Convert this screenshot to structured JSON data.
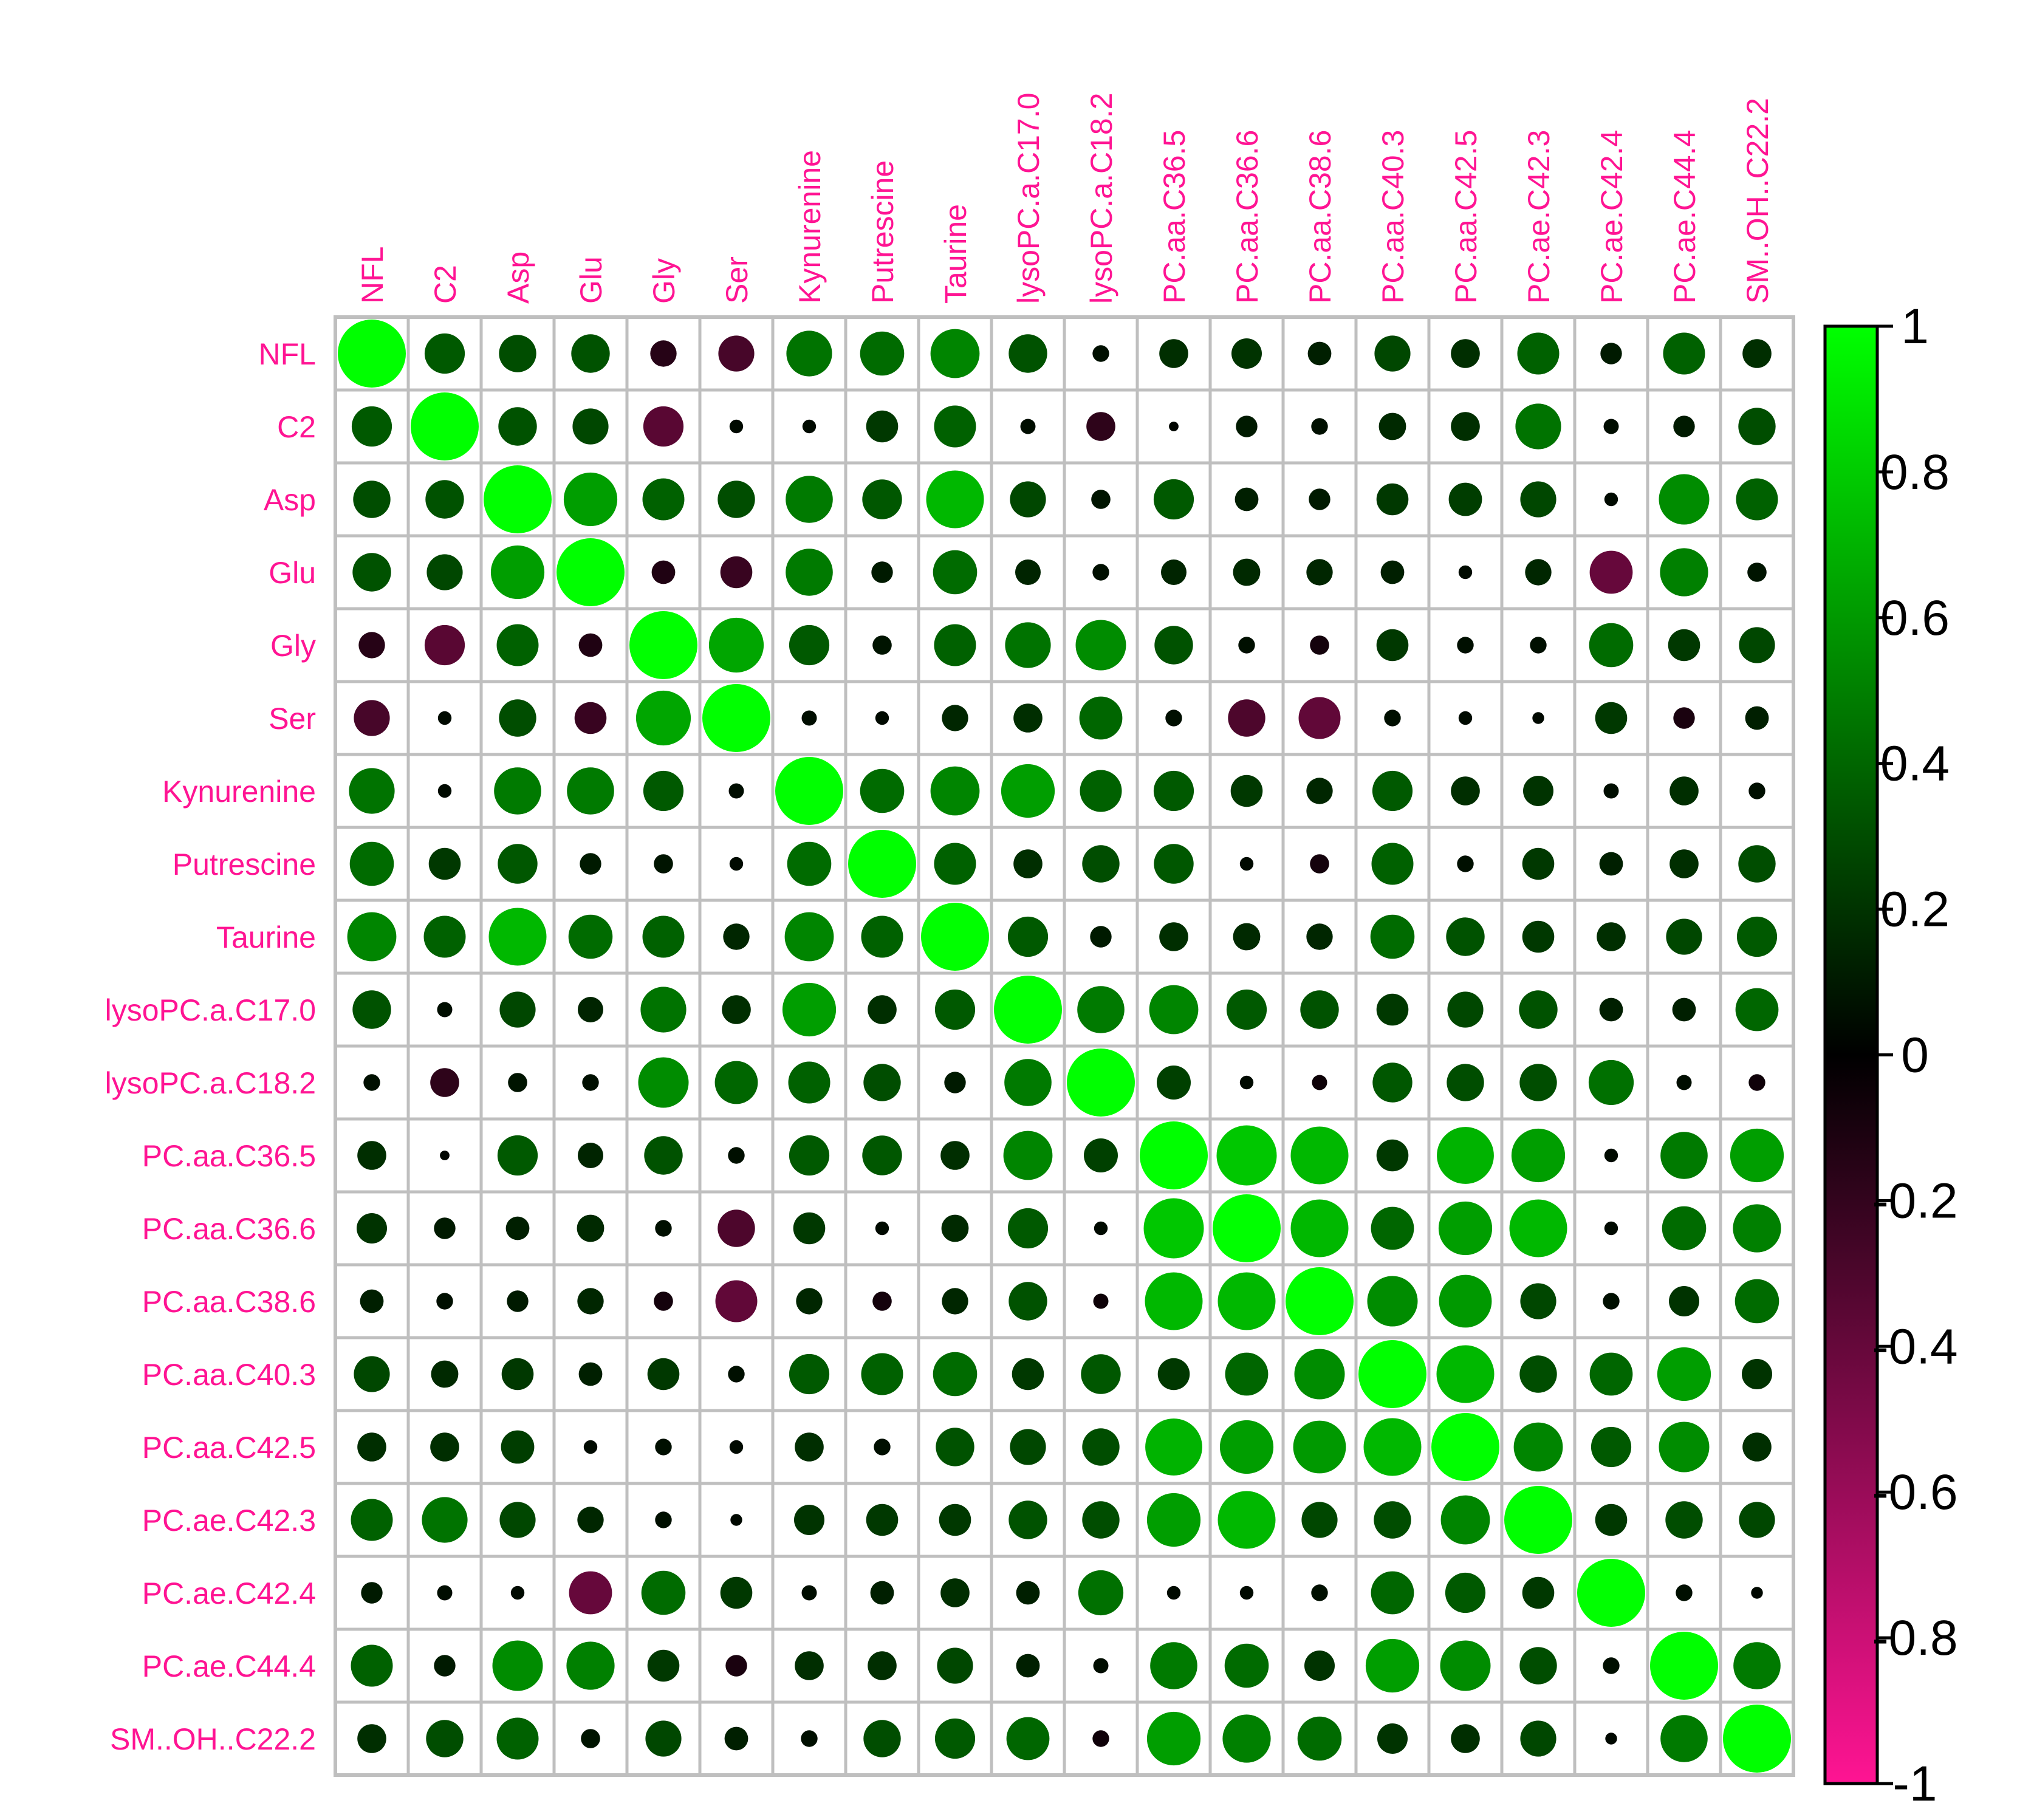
{
  "chart_data": {
    "type": "heatmap",
    "variables": [
      "NFL",
      "C2",
      "Asp",
      "Glu",
      "Gly",
      "Ser",
      "Kynurenine",
      "Putrescine",
      "Taurine",
      "lysoPC.a.C17.0",
      "lysoPC.a.C18.2",
      "PC.aa.C36.5",
      "PC.aa.C36.6",
      "PC.aa.C38.6",
      "PC.aa.C40.3",
      "PC.aa.C42.5",
      "PC.ae.C42.3",
      "PC.ae.C42.4",
      "PC.ae.C44.4",
      "SM..OH..C22.2"
    ],
    "matrix": [
      [
        1.0,
        0.35,
        0.3,
        0.32,
        -0.15,
        -0.28,
        0.45,
        0.42,
        0.52,
        0.32,
        0.06,
        0.18,
        0.2,
        0.12,
        0.28,
        0.18,
        0.38,
        0.1,
        0.38,
        0.18
      ],
      [
        0.35,
        1.0,
        0.32,
        0.28,
        -0.35,
        0.04,
        0.04,
        0.22,
        0.38,
        0.05,
        -0.18,
        0.02,
        0.1,
        0.06,
        0.16,
        0.18,
        0.45,
        0.05,
        0.1,
        0.3
      ],
      [
        0.3,
        0.32,
        1.0,
        0.62,
        0.38,
        0.3,
        0.48,
        0.34,
        0.72,
        0.28,
        0.08,
        0.35,
        0.12,
        0.1,
        0.22,
        0.24,
        0.28,
        0.04,
        0.55,
        0.38
      ],
      [
        0.32,
        0.28,
        0.62,
        1.0,
        -0.12,
        -0.22,
        0.48,
        0.1,
        0.42,
        0.14,
        0.06,
        0.14,
        0.16,
        0.15,
        0.12,
        0.04,
        0.15,
        -0.4,
        0.5,
        0.08
      ],
      [
        -0.15,
        -0.35,
        0.38,
        -0.12,
        1.0,
        0.65,
        0.35,
        0.08,
        0.38,
        0.45,
        0.55,
        0.32,
        0.06,
        -0.08,
        0.22,
        0.06,
        0.06,
        0.42,
        0.22,
        0.28
      ],
      [
        -0.28,
        0.04,
        0.3,
        -0.22,
        0.65,
        1.0,
        0.05,
        0.04,
        0.15,
        0.18,
        0.4,
        0.06,
        -0.3,
        -0.38,
        0.06,
        0.04,
        0.03,
        0.22,
        -0.1,
        0.12
      ],
      [
        0.45,
        0.04,
        0.48,
        0.48,
        0.35,
        0.05,
        1.0,
        0.42,
        0.52,
        0.62,
        0.38,
        0.35,
        0.22,
        0.15,
        0.35,
        0.18,
        0.2,
        0.05,
        0.18,
        0.06
      ],
      [
        0.42,
        0.22,
        0.34,
        0.1,
        0.08,
        0.04,
        0.42,
        1.0,
        0.38,
        0.18,
        0.3,
        0.34,
        0.04,
        -0.08,
        0.38,
        0.06,
        0.22,
        0.12,
        0.18,
        0.3
      ],
      [
        0.52,
        0.38,
        0.72,
        0.42,
        0.38,
        0.15,
        0.52,
        0.38,
        1.0,
        0.35,
        0.1,
        0.18,
        0.16,
        0.15,
        0.42,
        0.32,
        0.22,
        0.18,
        0.28,
        0.35
      ],
      [
        0.32,
        0.05,
        0.28,
        0.14,
        0.45,
        0.18,
        0.62,
        0.18,
        0.35,
        1.0,
        0.48,
        0.52,
        0.35,
        0.32,
        0.22,
        0.28,
        0.32,
        0.12,
        0.12,
        0.4
      ],
      [
        0.06,
        -0.18,
        0.08,
        0.06,
        0.55,
        0.4,
        0.38,
        0.3,
        0.1,
        0.48,
        1.0,
        0.25,
        0.04,
        -0.05,
        0.34,
        0.3,
        0.3,
        0.44,
        0.05,
        -0.06
      ],
      [
        0.18,
        0.02,
        0.35,
        0.14,
        0.32,
        0.06,
        0.35,
        0.34,
        0.18,
        0.52,
        0.25,
        1.0,
        0.78,
        0.72,
        0.22,
        0.7,
        0.62,
        0.04,
        0.48,
        0.62
      ],
      [
        0.2,
        0.1,
        0.12,
        0.16,
        0.06,
        -0.3,
        0.22,
        0.04,
        0.16,
        0.35,
        0.04,
        0.78,
        1.0,
        0.72,
        0.4,
        0.62,
        0.72,
        0.04,
        0.42,
        0.5
      ],
      [
        0.12,
        0.06,
        0.1,
        0.15,
        -0.08,
        -0.38,
        0.15,
        -0.08,
        0.15,
        0.32,
        -0.05,
        0.72,
        0.72,
        1.0,
        0.55,
        0.6,
        0.28,
        0.06,
        0.2,
        0.42
      ],
      [
        0.28,
        0.16,
        0.22,
        0.12,
        0.22,
        0.06,
        0.35,
        0.38,
        0.42,
        0.22,
        0.34,
        0.22,
        0.4,
        0.55,
        1.0,
        0.72,
        0.3,
        0.4,
        0.62,
        0.2
      ],
      [
        0.18,
        0.18,
        0.24,
        0.04,
        0.06,
        0.04,
        0.18,
        0.06,
        0.32,
        0.28,
        0.3,
        0.7,
        0.62,
        0.6,
        0.72,
        1.0,
        0.52,
        0.35,
        0.55,
        0.18
      ],
      [
        0.38,
        0.45,
        0.28,
        0.15,
        0.06,
        0.03,
        0.2,
        0.22,
        0.22,
        0.32,
        0.3,
        0.62,
        0.72,
        0.28,
        0.3,
        0.52,
        1.0,
        0.22,
        0.3,
        0.28
      ],
      [
        0.1,
        0.05,
        0.04,
        -0.4,
        0.42,
        0.22,
        0.05,
        0.12,
        0.18,
        0.12,
        0.44,
        0.04,
        0.04,
        0.06,
        0.4,
        0.35,
        0.22,
        1.0,
        0.06,
        0.03
      ],
      [
        0.38,
        0.1,
        0.55,
        0.5,
        0.22,
        -0.1,
        0.18,
        0.18,
        0.28,
        0.12,
        0.05,
        0.48,
        0.42,
        0.2,
        0.62,
        0.55,
        0.3,
        0.06,
        1.0,
        0.48
      ],
      [
        0.18,
        0.3,
        0.38,
        0.08,
        0.28,
        0.12,
        0.06,
        0.3,
        0.35,
        0.4,
        -0.06,
        0.62,
        0.5,
        0.42,
        0.2,
        0.18,
        0.28,
        0.03,
        0.48,
        1.0
      ]
    ],
    "colorbar": {
      "ticks": [
        "1",
        "0.8",
        "0.6",
        "0.4",
        "0.2",
        "0",
        "-0.2",
        "-0.4",
        "-0.6",
        "-0.8",
        "-1"
      ],
      "range": [
        -1,
        1
      ],
      "colors": {
        "high": "#00ff00",
        "mid": "#000000",
        "low": "#ff1493"
      }
    },
    "label_color": "#ff1493",
    "grid_color": "#bfbfbf",
    "legend_position": "right"
  }
}
